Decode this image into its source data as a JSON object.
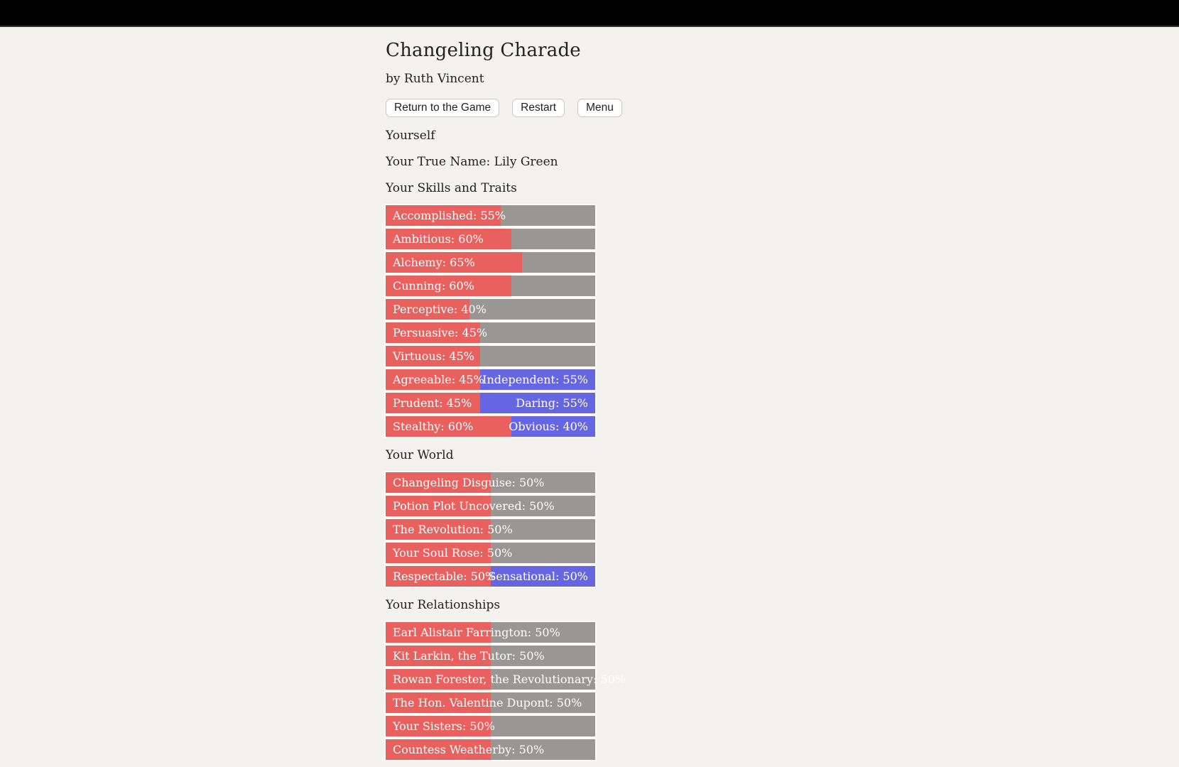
{
  "colors": {
    "background": "#f4f2ee",
    "topbar": "#000000",
    "bar_fill": "#e8615e",
    "bar_opposed": "#6665e2",
    "bar_track": "#999693",
    "bar_text": "#ffffff"
  },
  "header": {
    "title": "Changeling Charade",
    "author": "by Ruth Vincent"
  },
  "toolbar": {
    "buttons": [
      {
        "label": "Return to the Game"
      },
      {
        "label": "Restart"
      },
      {
        "label": "Menu"
      }
    ]
  },
  "profile": {
    "heading": "Yourself",
    "true_name": "Your True Name: Lily Green"
  },
  "sections": [
    {
      "heading": "Your Skills and Traits",
      "bars": [
        {
          "type": "plain",
          "text": "Accomplished: 55%",
          "value": 55
        },
        {
          "type": "plain",
          "text": "Ambitious: 60%",
          "value": 60
        },
        {
          "type": "plain",
          "text": "Alchemy: 65%",
          "value": 65
        },
        {
          "type": "plain",
          "text": "Cunning: 60%",
          "value": 60
        },
        {
          "type": "plain",
          "text": "Perceptive: 40%",
          "value": 40
        },
        {
          "type": "plain",
          "text": "Persuasive: 45%",
          "value": 45
        },
        {
          "type": "plain",
          "text": "Virtuous: 45%",
          "value": 45
        },
        {
          "type": "opposed",
          "left_text": "Agreeable: 45%",
          "left_value": 45,
          "right_text": "Independent: 55%",
          "right_value": 55
        },
        {
          "type": "opposed",
          "left_text": "Prudent: 45%",
          "left_value": 45,
          "right_text": "Daring: 55%",
          "right_value": 55
        },
        {
          "type": "opposed",
          "left_text": "Stealthy: 60%",
          "left_value": 60,
          "right_text": "Obvious: 40%",
          "right_value": 40
        }
      ]
    },
    {
      "heading": "Your World",
      "bars": [
        {
          "type": "plain",
          "text": "Changeling Disguise: 50%",
          "value": 50
        },
        {
          "type": "plain",
          "text": "Potion Plot Uncovered: 50%",
          "value": 50
        },
        {
          "type": "plain",
          "text": "The Revolution: 50%",
          "value": 50
        },
        {
          "type": "plain",
          "text": "Your Soul Rose: 50%",
          "value": 50
        },
        {
          "type": "opposed",
          "left_text": "Respectable: 50%",
          "left_value": 50,
          "right_text": "Sensational: 50%",
          "right_value": 50
        }
      ]
    },
    {
      "heading": "Your Relationships",
      "bars": [
        {
          "type": "plain",
          "text": "Earl Alistair Farrington: 50%",
          "value": 50
        },
        {
          "type": "plain",
          "text": "Kit Larkin, the Tutor: 50%",
          "value": 50
        },
        {
          "type": "plain",
          "text": "Rowan Forester, the Revolutionary: 50%",
          "value": 50
        },
        {
          "type": "plain",
          "text": "The Hon. Valentine Dupont: 50%",
          "value": 50
        },
        {
          "type": "plain",
          "text": "Your Sisters: 50%",
          "value": 50
        },
        {
          "type": "plain",
          "text": "Countess Weatherby: 50%",
          "value": 50
        }
      ]
    }
  ]
}
